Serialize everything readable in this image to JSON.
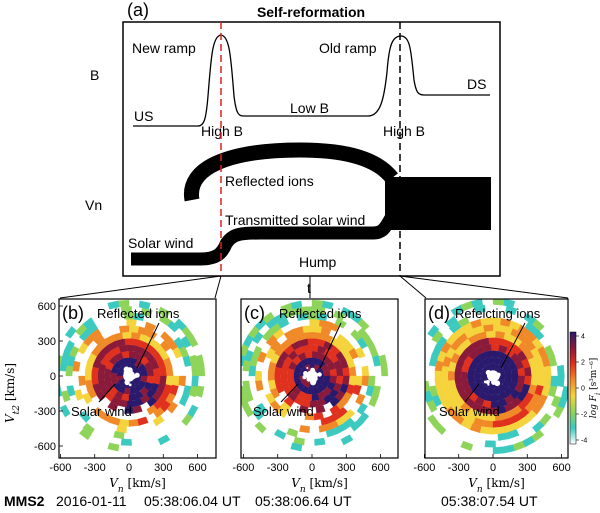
{
  "schematic": {
    "panel_label": "(a)",
    "title": "Self-reformation",
    "b_label": "B",
    "vn_label": "Vn",
    "t_label": "t",
    "new_ramp": "New ramp",
    "old_ramp": "Old ramp",
    "us": "US",
    "ds": "DS",
    "high_b_1": "High B",
    "high_b_2": "High B",
    "low_b": "Low B",
    "reflected_ions": "Reflected ions",
    "transmitted_solar_wind": "Transmitted solar wind",
    "solar_wind": "Solar wind",
    "hump": "Hump",
    "colors": {
      "new_ramp_line": "#e0201b",
      "old_ramp_line": "#000000",
      "flow": "#000000"
    }
  },
  "distributions": [
    {
      "panel_label": "(b)",
      "annotation_top": "Reflected ions",
      "annotation_bottom": "Solar wind",
      "timestamp": "05:38:06.04 UT"
    },
    {
      "panel_label": "(c)",
      "annotation_top": "Reflected ions",
      "annotation_bottom": "Solar wind",
      "timestamp": "05:38:06.64 UT"
    },
    {
      "panel_label": "(d)",
      "annotation_top": "Refelcting ions",
      "annotation_bottom": "Solar wind",
      "timestamp": "05:38:07.54 UT"
    }
  ],
  "axes": {
    "x_label": "V",
    "x_sub": "n",
    "x_unit": " [km/s]",
    "y_label": "V",
    "y_sub": "t2",
    "y_unit": " [km/s]",
    "x_ticks": [
      "-600",
      "-300",
      "0",
      "300",
      "600"
    ],
    "y_ticks": [
      "600",
      "300",
      "0",
      "-300",
      "-600"
    ]
  },
  "colorbar": {
    "label": "log F",
    "label_sub": "i",
    "label_unit": " [s³m⁻⁶]",
    "ticks": [
      "4",
      "2",
      "0",
      "-2",
      "-4"
    ],
    "colors": [
      "#2a1a6e",
      "#8a1a3a",
      "#e0301e",
      "#f08a28",
      "#f5d33c",
      "#8fd45a",
      "#3cc9c0",
      "#ffffff"
    ]
  },
  "caption": {
    "spacecraft": "MMS2",
    "date": "2016-01-11"
  }
}
